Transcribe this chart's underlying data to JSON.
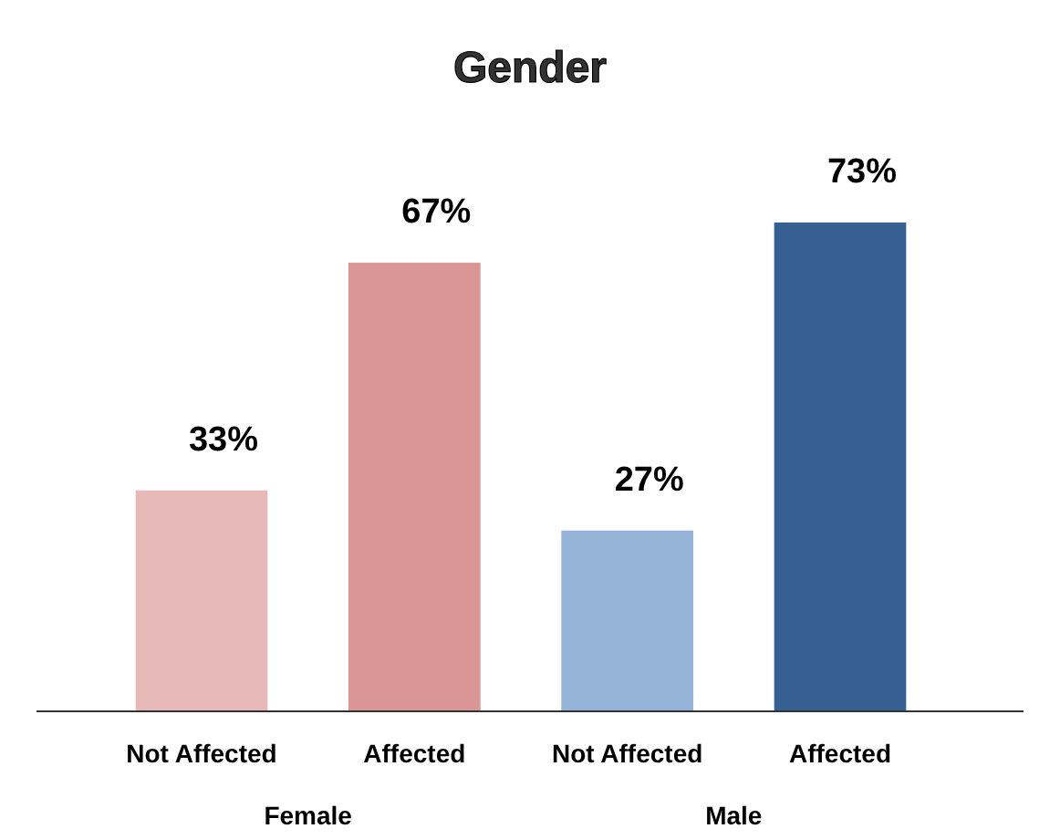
{
  "chart_data": {
    "type": "bar",
    "title": "Gender",
    "categories": [
      "Not Affected",
      "Affected",
      "Not Affected",
      "Affected"
    ],
    "values": [
      33,
      67,
      27,
      73
    ],
    "colors": [
      "#e6b8b7",
      "#d99694",
      "#95b3d7",
      "#376092"
    ],
    "data_labels": true,
    "value_labels": [
      "33%",
      "67%",
      "27%",
      "73%"
    ],
    "annotations": [
      "Female",
      "Male"
    ]
  }
}
